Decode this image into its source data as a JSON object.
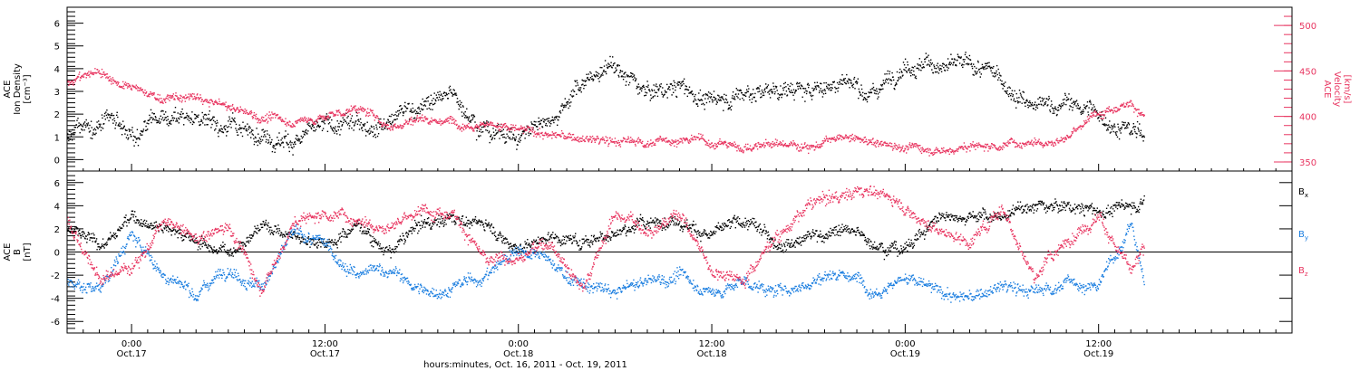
{
  "chart_data": {
    "type": "scatter",
    "time_axis": {
      "caption": "hours:minutes, Oct. 16, 2011 - Oct. 19, 2011",
      "ticks": [
        {
          "hour": 24,
          "time": "0:00",
          "date": "Oct.17"
        },
        {
          "hour": 36,
          "time": "12:00",
          "date": "Oct.17"
        },
        {
          "hour": 48,
          "time": "0:00",
          "date": "Oct.18"
        },
        {
          "hour": 60,
          "time": "12:00",
          "date": "Oct.18"
        },
        {
          "hour": 72,
          "time": "0:00",
          "date": "Oct.19"
        },
        {
          "hour": 84,
          "time": "12:00",
          "date": "Oct.19"
        }
      ],
      "range_hours": [
        20,
        96
      ],
      "data_end_hour": 86.8
    },
    "panels": [
      {
        "id": "density-velocity",
        "ylabel_lines": [
          "ACE",
          "Ion Density",
          "[cm⁻³]"
        ],
        "ylim": [
          -0.5,
          6.7
        ],
        "yticks": [
          0,
          1,
          2,
          3,
          4,
          5,
          6
        ],
        "y2label_lines": [
          "ACE",
          "Velocity",
          "[km/s]"
        ],
        "y2lim": [
          340,
          520
        ],
        "y2ticks": [
          350,
          400,
          450,
          500
        ],
        "series": [
          {
            "key": "density",
            "axis": "left",
            "color": "#000000",
            "x": [
              20,
              22,
              24,
              26,
              28,
              30,
              32,
              34,
              36,
              38,
              40,
              42,
              44,
              46,
              48,
              50,
              52,
              54,
              56,
              58,
              60,
              62,
              64,
              66,
              68,
              70,
              72,
              74,
              76,
              78,
              80,
              82,
              84,
              86,
              86.8
            ],
            "y": [
              1.0,
              1.5,
              1.0,
              1.8,
              2.0,
              1.5,
              1.2,
              1.0,
              1.3,
              1.5,
              2.0,
              2.5,
              2.8,
              1.5,
              1.0,
              2.0,
              3.5,
              4.0,
              3.0,
              3.2,
              2.5,
              3.0,
              3.2,
              3.0,
              3.5,
              3.0,
              4.5,
              4.2,
              4.0,
              3.5,
              2.2,
              2.5,
              2.0,
              1.2,
              1.0
            ]
          },
          {
            "key": "velocity",
            "axis": "right",
            "color": "#e83560",
            "x": [
              20,
              22,
              24,
              26,
              28,
              30,
              32,
              34,
              36,
              38,
              40,
              42,
              44,
              46,
              48,
              50,
              52,
              54,
              56,
              58,
              60,
              62,
              64,
              66,
              68,
              70,
              72,
              74,
              76,
              78,
              80,
              82,
              84,
              86,
              86.8
            ],
            "y": [
              440,
              450,
              430,
              420,
              420,
              410,
              400,
              395,
              400,
              410,
              390,
              400,
              395,
              395,
              385,
              380,
              375,
              372,
              373,
              375,
              372,
              368,
              370,
              370,
              375,
              372,
              368,
              365,
              367,
              370,
              375,
              378,
              405,
              420,
              400
            ]
          }
        ]
      },
      {
        "id": "magnetic-field",
        "ylabel_lines": [
          "ACE",
          "B",
          "[nT]"
        ],
        "ylim": [
          -7.0,
          7.0
        ],
        "yticks": [
          -6,
          -4,
          -2,
          0,
          2,
          4,
          6
        ],
        "zero_line": true,
        "series": [
          {
            "key": "bx",
            "name": "B",
            "sub": "x",
            "color": "#000000",
            "x": [
              20,
              22,
              24,
              26,
              28,
              30,
              32,
              34,
              36,
              38,
              40,
              42,
              44,
              46,
              48,
              50,
              52,
              54,
              56,
              58,
              60,
              62,
              64,
              66,
              68,
              70,
              72,
              74,
              76,
              78,
              80,
              82,
              84,
              86,
              86.8
            ],
            "y": [
              2.0,
              0.5,
              3.0,
              2.5,
              1.0,
              0.0,
              2.5,
              1.5,
              1.0,
              2.5,
              0.0,
              2.5,
              3.0,
              2.5,
              0.5,
              1.5,
              1.0,
              2.0,
              2.5,
              3.0,
              1.5,
              2.5,
              1.0,
              1.5,
              2.0,
              1.0,
              0.5,
              3.0,
              3.5,
              3.0,
              4.0,
              4.0,
              3.5,
              4.0,
              4.5
            ]
          },
          {
            "key": "by",
            "name": "B",
            "sub": "y",
            "color": "#1b7ee0",
            "x": [
              20,
              22,
              24,
              26,
              28,
              30,
              32,
              34,
              36,
              38,
              40,
              42,
              44,
              46,
              48,
              50,
              52,
              54,
              56,
              58,
              60,
              62,
              64,
              66,
              68,
              70,
              72,
              74,
              76,
              78,
              80,
              82,
              84,
              86,
              86.8
            ],
            "y": [
              -2.5,
              -3.0,
              1.5,
              -2.0,
              -3.5,
              -1.0,
              -3.0,
              1.5,
              0.5,
              -2.0,
              -1.5,
              -3.5,
              -3.0,
              -2.0,
              0.5,
              -1.0,
              -3.0,
              -3.5,
              -2.5,
              -2.0,
              -3.5,
              -2.5,
              -3.5,
              -2.5,
              -1.5,
              -3.0,
              -2.0,
              -3.5,
              -4.0,
              -3.0,
              -3.5,
              -2.5,
              -3.0,
              2.5,
              -2.5
            ]
          },
          {
            "key": "bz",
            "name": "B",
            "sub": "z",
            "color": "#e83560",
            "x": [
              20,
              22,
              24,
              26,
              28,
              30,
              32,
              34,
              36,
              38,
              40,
              42,
              44,
              46,
              48,
              50,
              52,
              54,
              56,
              58,
              60,
              62,
              64,
              66,
              68,
              70,
              72,
              74,
              76,
              78,
              80,
              82,
              84,
              86,
              86.8
            ],
            "y": [
              3.0,
              -2.5,
              -1.0,
              2.5,
              1.0,
              2.5,
              -3.0,
              2.5,
              3.5,
              3.0,
              2.5,
              3.5,
              3.8,
              -1.0,
              -0.5,
              1.0,
              -3.0,
              3.5,
              2.0,
              3.5,
              -1.5,
              -2.0,
              1.5,
              4.0,
              5.0,
              5.5,
              4.0,
              2.0,
              1.0,
              4.0,
              -2.0,
              1.0,
              3.5,
              -2.0,
              0.0
            ]
          }
        ]
      }
    ]
  }
}
